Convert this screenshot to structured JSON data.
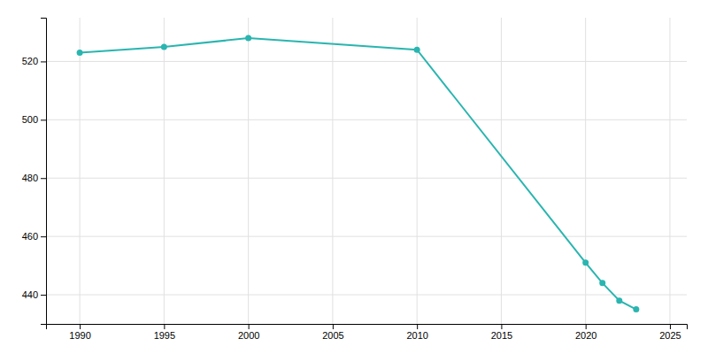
{
  "chart_data": {
    "type": "line",
    "x": [
      1990,
      1995,
      2000,
      2010,
      2020,
      2021,
      2022,
      2023
    ],
    "values": [
      523,
      525,
      528,
      524,
      451,
      444,
      438,
      435
    ],
    "color": "#2ab5b0",
    "marker": "circle",
    "xlim": [
      1988,
      2026
    ],
    "ylim": [
      430,
      535
    ],
    "xticks": [
      1990,
      1995,
      2000,
      2005,
      2010,
      2015,
      2020,
      2025
    ],
    "yticks": [
      440,
      460,
      480,
      500,
      520
    ],
    "grid": true
  }
}
